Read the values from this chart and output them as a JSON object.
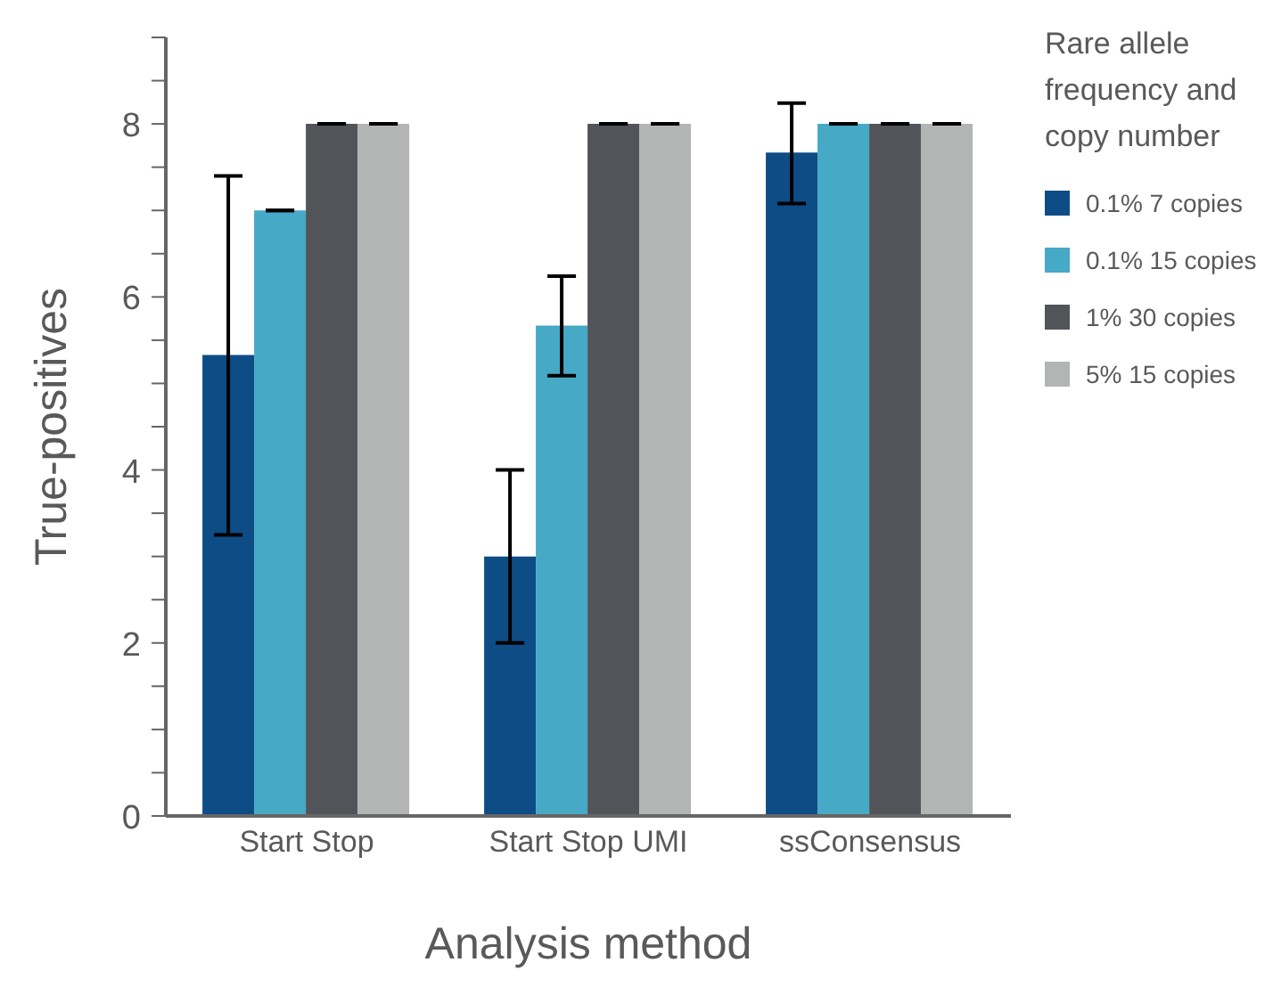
{
  "chart_data": {
    "type": "bar",
    "xlabel": "Analysis method",
    "ylabel": "True-positives",
    "legend_title": "Rare allele frequency and copy number",
    "categories": [
      "Start Stop",
      "Start Stop UMI",
      "ssConsensus"
    ],
    "series": [
      {
        "name": "0.1% 7 copies",
        "color": "#0e4c86",
        "values": [
          5.33,
          3,
          7.67
        ],
        "errors": [
          [
            3.25,
            7.4
          ],
          [
            2,
            4
          ],
          [
            7.08,
            8.24
          ]
        ]
      },
      {
        "name": "0.1% 15 copies",
        "color": "#46a9c5",
        "values": [
          7,
          5.67,
          8
        ],
        "errors": [
          0,
          [
            5.09,
            6.24
          ],
          0
        ]
      },
      {
        "name": "1% 30 copies",
        "color": "#525459",
        "values": [
          8,
          8,
          8
        ],
        "errors": [
          0,
          0,
          0
        ]
      },
      {
        "name": "5% 15 copies",
        "color": "#b3b4b4",
        "values": [
          8,
          8,
          8
        ],
        "errors": [
          0,
          0,
          0
        ]
      }
    ],
    "ylim": [
      0,
      9
    ],
    "yticks": [
      0,
      {
        "value": 0.5,
        "label": null
      },
      {
        "value": 1,
        "label": null
      },
      {
        "value": 1.5,
        "label": null
      },
      2,
      {
        "value": 2.5,
        "label": null
      },
      {
        "value": 3,
        "label": null
      },
      {
        "value": 3.5,
        "label": null
      },
      4,
      {
        "value": 4.5,
        "label": null
      },
      {
        "value": 5,
        "label": null
      },
      {
        "value": 5.5,
        "label": null
      },
      6,
      {
        "value": 6.5,
        "label": null
      },
      {
        "value": 7,
        "label": null
      },
      {
        "value": 7.5,
        "label": null
      },
      8,
      {
        "value": 8.5,
        "label": null
      },
      {
        "value": 9,
        "label": null
      }
    ],
    "grid": false,
    "legend": "right"
  }
}
